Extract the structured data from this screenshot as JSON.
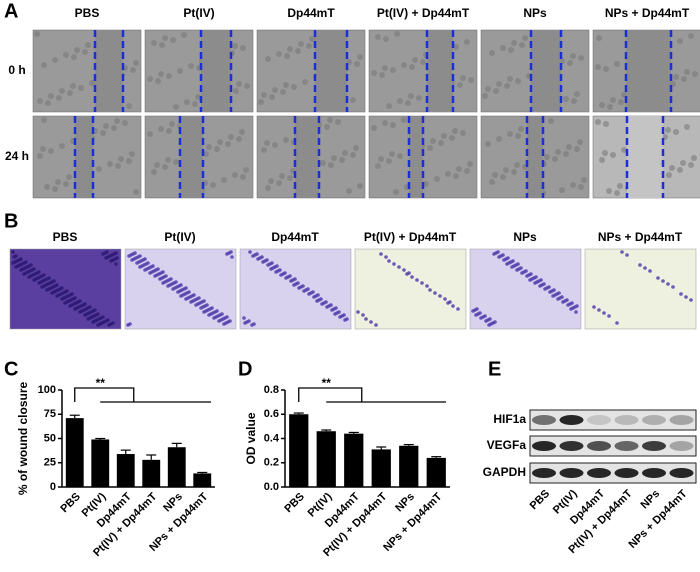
{
  "panel_a": {
    "label": "A",
    "columns": [
      "PBS",
      "Pt(IV)",
      "Dp44mT",
      "Pt(IV) + Dp44mT",
      "NPs",
      "NPs + Dp44mT"
    ],
    "rows": [
      "0 h",
      "24 h"
    ]
  },
  "panel_b": {
    "label": "B",
    "columns": [
      "PBS",
      "Pt(IV)",
      "Dp44mT",
      "Pt(IV) + Dp44mT",
      "NPs",
      "NPs + Dp44mT"
    ]
  },
  "panel_c": {
    "label": "C"
  },
  "panel_d": {
    "label": "D"
  },
  "panel_e": {
    "label": "E",
    "rows": [
      "HIF1a",
      "VEGFa",
      "GAPDH"
    ],
    "lanes": [
      "PBS",
      "Pt(IV)",
      "Dp44mT",
      "Pt(IV) + Dp44mT",
      "NPs",
      "NPs + Dp44mT"
    ]
  },
  "chart_data": [
    {
      "type": "bar",
      "y_label": "% of wound closure",
      "categories": [
        "PBS",
        "Pt(IV)",
        "Dp44mT",
        "Pt(IV) + Dp44mT",
        "NPs",
        "NPs + Dp44mT"
      ],
      "values": [
        71,
        49,
        34,
        28,
        41,
        14
      ],
      "errors": [
        3,
        1,
        4,
        5,
        4,
        1
      ],
      "color": "#000000",
      "ylim": [
        0,
        100
      ],
      "yticks": [
        0,
        25,
        50,
        75,
        100
      ],
      "annotation": "**"
    },
    {
      "type": "bar",
      "y_label": "OD value",
      "categories": [
        "PBS",
        "Pt(IV)",
        "Dp44mT",
        "Pt(IV) + Dp44mT",
        "NPs",
        "NPs + Dp44mT"
      ],
      "values": [
        0.6,
        0.46,
        0.44,
        0.31,
        0.34,
        0.24
      ],
      "errors": [
        0.01,
        0.01,
        0.01,
        0.02,
        0.01,
        0.01
      ],
      "color": "#000000",
      "ylim": [
        0,
        0.8
      ],
      "yticks": [
        {
          "value": 0,
          "label": "0.0"
        },
        0.2,
        0.4,
        0.6,
        0.8
      ],
      "annotation": "**"
    }
  ]
}
